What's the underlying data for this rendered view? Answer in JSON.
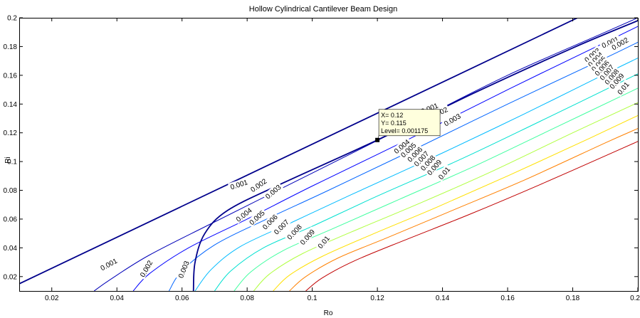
{
  "chart_data": {
    "type": "contour",
    "title": "Hollow Cylindrical Cantilever Beam Design",
    "xlabel": "Ro",
    "ylabel": "Ri",
    "xlim": [
      0.01,
      0.2
    ],
    "ylim": [
      0.01,
      0.2
    ],
    "xticks": [
      "0.02",
      "0.04",
      "0.06",
      "0.08",
      "0.1",
      "0.12",
      "0.14",
      "0.16",
      "0.18",
      "0.2"
    ],
    "yticks": [
      "0.02",
      "0.04",
      "0.06",
      "0.08",
      "0.1",
      "0.12",
      "0.14",
      "0.16",
      "0.18",
      "0.2"
    ],
    "grid": false,
    "boundary_line": {
      "color": "#00008b",
      "points": [
        [
          0.01,
          0.015
        ],
        [
          0.1815,
          0.2
        ]
      ]
    },
    "constraint_curve": {
      "color": "#00008b",
      "points": [
        [
          0.0635,
          0.01
        ],
        [
          0.064,
          0.03
        ],
        [
          0.067,
          0.05
        ],
        [
          0.074,
          0.066
        ],
        [
          0.09,
          0.084
        ],
        [
          0.12,
          0.115
        ],
        [
          0.15,
          0.148
        ],
        [
          0.18,
          0.179
        ],
        [
          0.2,
          0.198
        ]
      ]
    },
    "contours": [
      {
        "level": "0.001",
        "color": "#0000b8",
        "points": [
          [
            0.033,
            0.01
          ],
          [
            0.038,
            0.018
          ],
          [
            0.05,
            0.035
          ],
          [
            0.07,
            0.058
          ],
          [
            0.1,
            0.092
          ],
          [
            0.13,
            0.126
          ],
          [
            0.16,
            0.16
          ],
          [
            0.19,
            0.19
          ],
          [
            0.2,
            0.2
          ]
        ]
      },
      {
        "level": "0.002",
        "color": "#0000ff",
        "points": [
          [
            0.045,
            0.01
          ],
          [
            0.05,
            0.022
          ],
          [
            0.062,
            0.04
          ],
          [
            0.08,
            0.06
          ],
          [
            0.1,
            0.083
          ],
          [
            0.13,
            0.116
          ],
          [
            0.16,
            0.15
          ],
          [
            0.19,
            0.183
          ],
          [
            0.2,
            0.194
          ]
        ]
      },
      {
        "level": "0.003",
        "color": "#0064ff",
        "points": [
          [
            0.056,
            0.01
          ],
          [
            0.06,
            0.024
          ],
          [
            0.07,
            0.042
          ],
          [
            0.086,
            0.06
          ],
          [
            0.105,
            0.08
          ],
          [
            0.13,
            0.107
          ],
          [
            0.16,
            0.14
          ],
          [
            0.19,
            0.172
          ],
          [
            0.2,
            0.183
          ]
        ]
      },
      {
        "level": "0.004",
        "color": "#00bbff",
        "points": [
          [
            0.064,
            0.01
          ],
          [
            0.069,
            0.025
          ],
          [
            0.078,
            0.041
          ],
          [
            0.094,
            0.058
          ],
          [
            0.112,
            0.077
          ],
          [
            0.14,
            0.106
          ],
          [
            0.165,
            0.133
          ],
          [
            0.19,
            0.161
          ],
          [
            0.2,
            0.172
          ]
        ]
      },
      {
        "level": "0.005",
        "color": "#00e0d0",
        "points": [
          [
            0.07,
            0.01
          ],
          [
            0.075,
            0.024
          ],
          [
            0.085,
            0.04
          ],
          [
            0.1,
            0.055
          ],
          [
            0.12,
            0.076
          ],
          [
            0.145,
            0.101
          ],
          [
            0.17,
            0.128
          ],
          [
            0.2,
            0.161
          ]
        ]
      },
      {
        "level": "0.006",
        "color": "#40ffa0",
        "points": [
          [
            0.076,
            0.01
          ],
          [
            0.081,
            0.023
          ],
          [
            0.091,
            0.038
          ],
          [
            0.106,
            0.053
          ],
          [
            0.127,
            0.074
          ],
          [
            0.15,
            0.097
          ],
          [
            0.175,
            0.124
          ],
          [
            0.2,
            0.151
          ]
        ]
      },
      {
        "level": "0.007",
        "color": "#b0ff40",
        "points": [
          [
            0.082,
            0.01
          ],
          [
            0.087,
            0.022
          ],
          [
            0.097,
            0.036
          ],
          [
            0.112,
            0.051
          ],
          [
            0.133,
            0.071
          ],
          [
            0.155,
            0.093
          ],
          [
            0.18,
            0.12
          ],
          [
            0.2,
            0.141
          ]
        ]
      },
      {
        "level": "0.008",
        "color": "#ffe000",
        "points": [
          [
            0.088,
            0.01
          ],
          [
            0.093,
            0.021
          ],
          [
            0.103,
            0.034
          ],
          [
            0.118,
            0.049
          ],
          [
            0.138,
            0.068
          ],
          [
            0.16,
            0.09
          ],
          [
            0.185,
            0.116
          ],
          [
            0.2,
            0.132
          ]
        ]
      },
      {
        "level": "0.009",
        "color": "#ff8000",
        "points": [
          [
            0.093,
            0.01
          ],
          [
            0.098,
            0.02
          ],
          [
            0.108,
            0.033
          ],
          [
            0.123,
            0.047
          ],
          [
            0.143,
            0.066
          ],
          [
            0.165,
            0.087
          ],
          [
            0.19,
            0.113
          ],
          [
            0.2,
            0.123
          ]
        ]
      },
      {
        "level": "0.01",
        "color": "#c00000",
        "points": [
          [
            0.098,
            0.01
          ],
          [
            0.103,
            0.019
          ],
          [
            0.113,
            0.031
          ],
          [
            0.128,
            0.045
          ],
          [
            0.148,
            0.063
          ],
          [
            0.17,
            0.084
          ],
          [
            0.195,
            0.109
          ],
          [
            0.2,
            0.114
          ]
        ]
      }
    ],
    "contour_labels": [
      {
        "text": "0.001",
        "x": 0.0375,
        "y": 0.0285,
        "angle": -28
      },
      {
        "text": "0.002",
        "x": 0.049,
        "y": 0.0255,
        "angle": -60
      },
      {
        "text": "0.003",
        "x": 0.0605,
        "y": 0.025,
        "angle": -68
      },
      {
        "text": "0.001",
        "x": 0.0775,
        "y": 0.084,
        "angle": -18
      },
      {
        "text": "0.002",
        "x": 0.0835,
        "y": 0.0835,
        "angle": -35
      },
      {
        "text": "0.003",
        "x": 0.088,
        "y": 0.079,
        "angle": -40
      },
      {
        "text": "0.004",
        "x": 0.079,
        "y": 0.063,
        "angle": -38
      },
      {
        "text": "0.005",
        "x": 0.083,
        "y": 0.061,
        "angle": -42
      },
      {
        "text": "0.006",
        "x": 0.087,
        "y": 0.058,
        "angle": -45
      },
      {
        "text": "0.007",
        "x": 0.0905,
        "y": 0.0545,
        "angle": -45
      },
      {
        "text": "0.008",
        "x": 0.0945,
        "y": 0.051,
        "angle": -47
      },
      {
        "text": "0.009",
        "x": 0.0985,
        "y": 0.0475,
        "angle": -48
      },
      {
        "text": "0.01",
        "x": 0.1035,
        "y": 0.044,
        "angle": -50
      },
      {
        "text": "0.001",
        "x": 0.136,
        "y": 0.137,
        "angle": -22
      },
      {
        "text": "0.002",
        "x": 0.139,
        "y": 0.134,
        "angle": -25
      },
      {
        "text": "0.003",
        "x": 0.143,
        "y": 0.129,
        "angle": -30
      },
      {
        "text": "0.004",
        "x": 0.1275,
        "y": 0.1105,
        "angle": -40
      },
      {
        "text": "0.005",
        "x": 0.1295,
        "y": 0.108,
        "angle": -43
      },
      {
        "text": "0.006",
        "x": 0.1315,
        "y": 0.105,
        "angle": -45
      },
      {
        "text": "0.007",
        "x": 0.1335,
        "y": 0.102,
        "angle": -47
      },
      {
        "text": "0.008",
        "x": 0.1355,
        "y": 0.099,
        "angle": -48
      },
      {
        "text": "0.009",
        "x": 0.1375,
        "y": 0.096,
        "angle": -49
      },
      {
        "text": "0.01",
        "x": 0.1405,
        "y": 0.092,
        "angle": -50
      },
      {
        "text": "0.001",
        "x": 0.1915,
        "y": 0.183,
        "angle": -25
      },
      {
        "text": "0.002",
        "x": 0.1945,
        "y": 0.182,
        "angle": -30
      },
      {
        "text": "0.003",
        "x": 0.186,
        "y": 0.174,
        "angle": -40
      },
      {
        "text": "0.004",
        "x": 0.187,
        "y": 0.171,
        "angle": -45
      },
      {
        "text": "0.005",
        "x": 0.188,
        "y": 0.168,
        "angle": -47
      },
      {
        "text": "0.006",
        "x": 0.189,
        "y": 0.165,
        "angle": -48
      },
      {
        "text": "0.007",
        "x": 0.1905,
        "y": 0.162,
        "angle": -50
      },
      {
        "text": "0.008",
        "x": 0.192,
        "y": 0.159,
        "angle": -50
      },
      {
        "text": "0.009",
        "x": 0.1935,
        "y": 0.156,
        "angle": -50
      },
      {
        "text": "0.01",
        "x": 0.1955,
        "y": 0.151,
        "angle": -50
      }
    ],
    "datatip": {
      "marker": {
        "x": 0.12,
        "y": 0.115
      },
      "lines": [
        "X= 0.12",
        "Y= 0.115",
        "Level= 0.001175"
      ],
      "background": "#ffffdd"
    }
  }
}
